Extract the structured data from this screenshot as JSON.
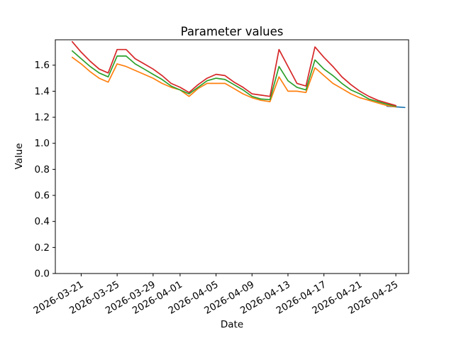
{
  "figure": {
    "background": "#ffffff"
  },
  "chart_data": {
    "type": "line",
    "title": "Parameter values",
    "xlabel": "Date",
    "ylabel": "Value",
    "grid": false,
    "legend": null,
    "ylim": [
      0,
      1.795
    ],
    "xlim": [
      "2026-03-18T03:00:00Z",
      "2026-04-26T10:00:00Z"
    ],
    "yticks": [
      0.0,
      0.2,
      0.4,
      0.6,
      0.8,
      1.0,
      1.2,
      1.4,
      1.6
    ],
    "ytick_labels": [
      "0.0",
      "0.2",
      "0.4",
      "0.6",
      "0.8",
      "1.0",
      "1.2",
      "1.4",
      "1.6"
    ],
    "xticks": [
      "2026-03-21",
      "2026-03-25",
      "2026-03-29",
      "2026-04-01",
      "2026-04-05",
      "2026-04-09",
      "2026-04-13",
      "2026-04-17",
      "2026-04-21",
      "2026-04-25"
    ],
    "xtick_rotation_deg": 30,
    "dates": [
      "2026-03-20",
      "2026-03-21",
      "2026-03-22",
      "2026-03-23",
      "2026-03-24",
      "2026-03-25",
      "2026-03-26",
      "2026-03-27",
      "2026-03-28",
      "2026-03-29",
      "2026-03-30",
      "2026-03-31",
      "2026-04-01",
      "2026-04-02",
      "2026-04-03",
      "2026-04-04",
      "2026-04-05",
      "2026-04-06",
      "2026-04-07",
      "2026-04-08",
      "2026-04-09",
      "2026-04-10",
      "2026-04-11",
      "2026-04-12",
      "2026-04-13",
      "2026-04-14",
      "2026-04-15",
      "2026-04-16",
      "2026-04-17",
      "2026-04-18",
      "2026-04-19",
      "2026-04-20",
      "2026-04-21",
      "2026-04-22",
      "2026-04-23",
      "2026-04-24",
      "2026-04-25"
    ],
    "series": [
      {
        "name": "blue",
        "color": "#1f77b4",
        "dates": [
          "2026-04-24",
          "2026-04-25",
          "2026-04-26"
        ],
        "values": [
          1.285,
          1.28,
          1.275
        ]
      },
      {
        "name": "orange",
        "color": "#ff7f0e",
        "values": [
          1.66,
          1.61,
          1.55,
          1.5,
          1.47,
          1.61,
          1.59,
          1.56,
          1.53,
          1.5,
          1.46,
          1.43,
          1.41,
          1.36,
          1.42,
          1.46,
          1.46,
          1.46,
          1.42,
          1.38,
          1.35,
          1.33,
          1.32,
          1.51,
          1.4,
          1.4,
          1.39,
          1.58,
          1.52,
          1.46,
          1.42,
          1.38,
          1.35,
          1.33,
          1.31,
          1.29,
          1.28
        ]
      },
      {
        "name": "green",
        "color": "#2ca02c",
        "values": [
          1.71,
          1.65,
          1.59,
          1.54,
          1.51,
          1.67,
          1.67,
          1.61,
          1.57,
          1.53,
          1.49,
          1.44,
          1.41,
          1.38,
          1.43,
          1.48,
          1.5,
          1.49,
          1.45,
          1.41,
          1.36,
          1.34,
          1.335,
          1.59,
          1.48,
          1.43,
          1.41,
          1.64,
          1.57,
          1.52,
          1.46,
          1.41,
          1.38,
          1.34,
          1.32,
          1.3,
          1.285
        ]
      },
      {
        "name": "red",
        "color": "#d62728",
        "values": [
          1.78,
          1.7,
          1.63,
          1.57,
          1.54,
          1.72,
          1.72,
          1.65,
          1.61,
          1.57,
          1.52,
          1.46,
          1.43,
          1.39,
          1.45,
          1.5,
          1.53,
          1.52,
          1.47,
          1.43,
          1.38,
          1.37,
          1.36,
          1.72,
          1.59,
          1.46,
          1.44,
          1.74,
          1.66,
          1.59,
          1.51,
          1.45,
          1.4,
          1.36,
          1.33,
          1.31,
          1.29
        ]
      }
    ]
  }
}
